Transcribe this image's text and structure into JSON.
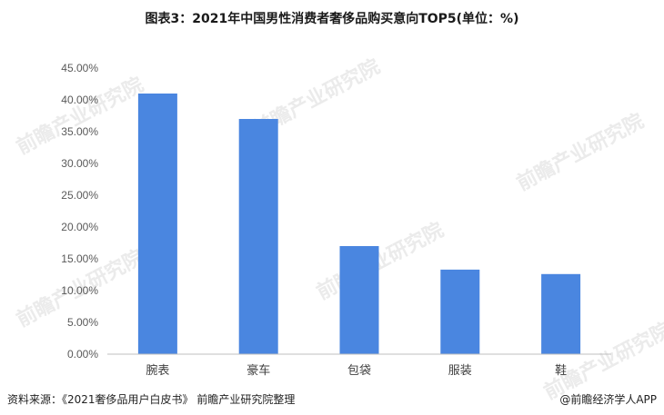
{
  "header": {
    "title": "图表3：2021年中国男性消费者奢侈品购买意向TOP5(单位：%)"
  },
  "footer": {
    "source": "资料来源：《2021奢侈品用户白皮书》 前瞻产业研究院整理",
    "brand": "@前瞻经济学人APP"
  },
  "watermark": {
    "text": "前瞻产业研究院"
  },
  "colors": {
    "bar": "#4a86e0",
    "axis": "#bfbfbf",
    "tick_text": "#595959"
  },
  "chart_data": {
    "type": "bar",
    "title": "图表3：2021年中国男性消费者奢侈品购买意向TOP5(单位：%)",
    "categories": [
      "腕表",
      "豪车",
      "包袋",
      "服装",
      "鞋"
    ],
    "values": [
      41.0,
      37.0,
      17.0,
      13.3,
      12.6
    ],
    "xlabel": "",
    "ylabel": "",
    "ylim": [
      0,
      45
    ],
    "yticks": [
      "0.00%",
      "5.00%",
      "10.00%",
      "15.00%",
      "20.00%",
      "25.00%",
      "30.00%",
      "35.00%",
      "40.00%",
      "45.00%"
    ],
    "grid": false
  }
}
